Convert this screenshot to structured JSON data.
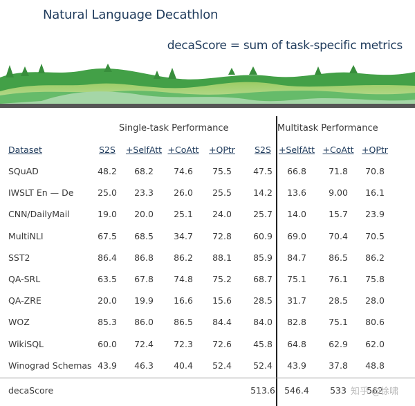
{
  "title": "Natural Language Decathlon",
  "subtitle": "decaScore = sum of task-specific metrics",
  "groups": {
    "single": "Single-task Performance",
    "multi": "Multitask Performance"
  },
  "headers": [
    "Dataset",
    "S2S",
    "+SelfAtt",
    "+CoAtt",
    "+QPtr",
    "S2S",
    "+SelfAtt",
    "+CoAtt",
    "+QPtr"
  ],
  "rows": [
    {
      "name": "SQuAD",
      "values": [
        "48.2",
        "68.2",
        "74.6",
        "75.5",
        "47.5",
        "66.8",
        "71.8",
        "70.8"
      ]
    },
    {
      "name": "IWSLT En — De",
      "values": [
        "25.0",
        "23.3",
        "26.0",
        "25.5",
        "14.2",
        "13.6",
        "9.00",
        "16.1"
      ]
    },
    {
      "name": "CNN/DailyMail",
      "values": [
        "19.0",
        "20.0",
        "25.1",
        "24.0",
        "25.7",
        "14.0",
        "15.7",
        "23.9"
      ]
    },
    {
      "name": "MultiNLI",
      "values": [
        "67.5",
        "68.5",
        "34.7",
        "72.8",
        "60.9",
        "69.0",
        "70.4",
        "70.5"
      ]
    },
    {
      "name": "SST2",
      "values": [
        "86.4",
        "86.8",
        "86.2",
        "88.1",
        "85.9",
        "84.7",
        "86.5",
        "86.2"
      ]
    },
    {
      "name": "QA-SRL",
      "values": [
        "63.5",
        "67.8",
        "74.8",
        "75.2",
        "68.7",
        "75.1",
        "76.1",
        "75.8"
      ]
    },
    {
      "name": "QA-ZRE",
      "values": [
        "20.0",
        "19.9",
        "16.6",
        "15.6",
        "28.5",
        "31.7",
        "28.5",
        "28.0"
      ]
    },
    {
      "name": "WOZ",
      "values": [
        "85.3",
        "86.0",
        "86.5",
        "84.4",
        "84.0",
        "82.8",
        "75.1",
        "80.6"
      ]
    },
    {
      "name": "WikiSQL",
      "values": [
        "60.0",
        "72.4",
        "72.3",
        "72.6",
        "45.8",
        "64.8",
        "62.9",
        "62.0"
      ]
    },
    {
      "name": "Winograd Schemas",
      "values": [
        "43.9",
        "46.3",
        "40.4",
        "52.4",
        "52.4",
        "43.9",
        "37.8",
        "48.8"
      ]
    }
  ],
  "total": {
    "name": "decaScore",
    "values": [
      "",
      "",
      "",
      "",
      "513.6",
      "546.4",
      "533",
      "562"
    ]
  },
  "watermark": "知乎 @徐啸",
  "colors": {
    "title": "#1f3b5c",
    "hill_dark": "#2e7d32",
    "hill_light": "#8bc34a"
  }
}
